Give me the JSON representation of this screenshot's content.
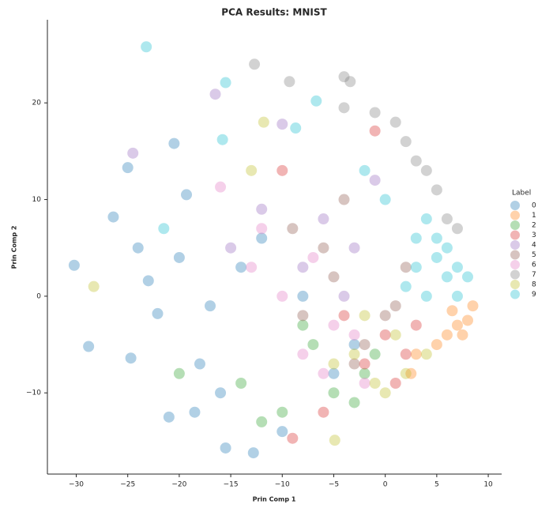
{
  "chart_data": {
    "type": "scatter",
    "title": "PCA Results: MNIST",
    "x_label": "Prin Comp 1",
    "y_label": "Prin Comp 2",
    "legend_title": "Label",
    "legend": "right",
    "xlim": [
      -32.8,
      11.3
    ],
    "ylim": [
      -18.4,
      28.6
    ],
    "xticks": [
      {
        "value": -30,
        "label": "−30"
      },
      {
        "value": -25,
        "label": "−25"
      },
      {
        "value": -20,
        "label": "−20"
      },
      {
        "value": -15,
        "label": "−15"
      },
      {
        "value": -10,
        "label": "−10"
      },
      {
        "value": -5,
        "label": "−5"
      },
      0,
      5,
      10
    ],
    "yticks": [
      {
        "value": -10,
        "label": "−10"
      },
      0,
      10,
      20
    ],
    "series": [
      {
        "name": "0",
        "color": "#1f77b4",
        "x": [
          -30.2,
          -28.8,
          -25,
          -26.4,
          -24.7,
          -22.1,
          -20.5,
          -19.3,
          -18,
          -17,
          -15.5,
          -12.8,
          -14,
          -10,
          -8,
          -5,
          -20,
          -23,
          -16,
          -12,
          -3,
          -24,
          -21,
          -18.5
        ],
        "y": [
          3.2,
          -5.2,
          13.3,
          8.2,
          -6.4,
          -1.8,
          15.8,
          10.5,
          -7,
          -1,
          -15.7,
          -16.2,
          3,
          -14,
          0,
          -8,
          4,
          1.6,
          -10,
          6,
          -5,
          5,
          -12.5,
          -12
        ]
      },
      {
        "name": "1",
        "color": "#ff7f0e",
        "x": [
          7,
          8,
          6,
          5,
          3,
          7.5,
          2.5,
          6.5,
          8.5
        ],
        "y": [
          -3,
          -2.5,
          -4,
          -5,
          -6,
          -4,
          -8,
          -1.5,
          -1
        ]
      },
      {
        "name": "2",
        "color": "#2ca02c",
        "x": [
          -10,
          -5,
          -2,
          -14,
          -7,
          -20,
          -1,
          -12,
          -3,
          -8
        ],
        "y": [
          -12,
          -10,
          -8,
          -9,
          -5,
          -8,
          -6,
          -13,
          -11,
          -3
        ]
      },
      {
        "name": "3",
        "color": "#d62728",
        "x": [
          -9,
          -1,
          -2,
          0,
          2,
          -4,
          -10,
          -6,
          1,
          3
        ],
        "y": [
          -14.7,
          17.1,
          -7,
          -4,
          -6,
          -2,
          13,
          -12,
          -9,
          -3
        ]
      },
      {
        "name": "4",
        "color": "#9467bd",
        "x": [
          -24.5,
          -16.5,
          -10,
          -6,
          -3,
          -12,
          -8,
          -1,
          -15,
          -4
        ],
        "y": [
          14.8,
          20.9,
          17.8,
          8,
          5,
          9,
          3,
          12,
          5,
          0
        ]
      },
      {
        "name": "5",
        "color": "#8c564b",
        "x": [
          -3,
          -5,
          0,
          -8,
          2,
          -2,
          -6,
          1,
          -4,
          -9
        ],
        "y": [
          -7,
          2,
          -2,
          -2,
          3,
          -5,
          5,
          -1,
          10,
          7
        ]
      },
      {
        "name": "6",
        "color": "#e377c2",
        "x": [
          -16,
          -12,
          -8,
          -6,
          -5,
          -10,
          -3,
          -7,
          -13,
          -2
        ],
        "y": [
          11.3,
          7,
          -6,
          -8,
          -3,
          0,
          -4,
          4,
          3,
          -9
        ]
      },
      {
        "name": "7",
        "color": "#7f7f7f",
        "x": [
          -12.7,
          -9.3,
          -4,
          -3.4,
          -1,
          1,
          3,
          5,
          6,
          7,
          4,
          2,
          -4
        ],
        "y": [
          24,
          22.2,
          22.7,
          22.2,
          19,
          18,
          14,
          11,
          8,
          7,
          13,
          16,
          19.5
        ]
      },
      {
        "name": "8",
        "color": "#bcbd22",
        "x": [
          -28.3,
          -11.8,
          -4.9,
          -1,
          0,
          -3,
          2,
          1,
          -2,
          4,
          -13,
          -5
        ],
        "y": [
          1,
          18,
          -14.9,
          -9,
          -10,
          -6,
          -8,
          -4,
          -2,
          -6,
          13,
          -7
        ]
      },
      {
        "name": "9",
        "color": "#17becf",
        "x": [
          -23.2,
          -15.5,
          -6.7,
          -15.8,
          -21.5,
          -8.7,
          3,
          5,
          6,
          4,
          7,
          2,
          5,
          6,
          3,
          -2,
          0,
          7,
          8,
          4
        ],
        "y": [
          25.8,
          22.1,
          20.2,
          16.2,
          7,
          17.4,
          6,
          4,
          2,
          8,
          3,
          1,
          6,
          5,
          3,
          13,
          10,
          0,
          2,
          0
        ]
      }
    ]
  }
}
